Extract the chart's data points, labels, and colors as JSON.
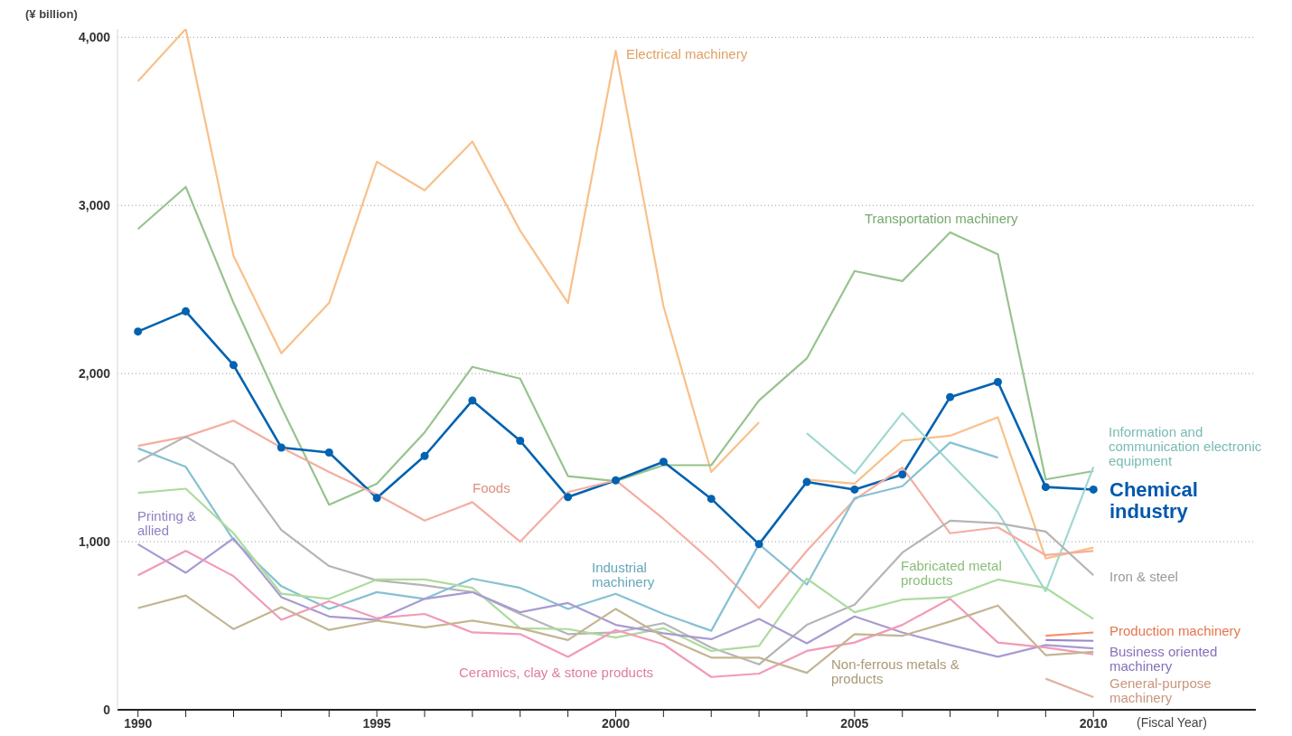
{
  "chart_data": {
    "type": "line",
    "ylabel": "(¥ billion)",
    "xlabel": "(Fiscal Year)",
    "x": [
      1990,
      1991,
      1992,
      1993,
      1994,
      1995,
      1996,
      1997,
      1998,
      1999,
      2000,
      2001,
      2002,
      2003,
      2004,
      2005,
      2006,
      2007,
      2008,
      2009,
      2010
    ],
    "xlim": [
      1989.57,
      2013.4
    ],
    "xticks": [
      1990,
      {
        "value": 1991,
        "label": null
      },
      {
        "value": 1992,
        "label": null
      },
      {
        "value": 1993,
        "label": null
      },
      {
        "value": 1994,
        "label": null
      },
      1995,
      {
        "value": 1996,
        "label": null
      },
      {
        "value": 1997,
        "label": null
      },
      {
        "value": 1998,
        "label": null
      },
      {
        "value": 1999,
        "label": null
      },
      2000,
      {
        "value": 2001,
        "label": null
      },
      {
        "value": 2002,
        "label": null
      },
      {
        "value": 2003,
        "label": null
      },
      {
        "value": 2004,
        "label": null
      },
      2005,
      {
        "value": 2006,
        "label": null
      },
      {
        "value": 2007,
        "label": null
      },
      {
        "value": 2008,
        "label": null
      },
      {
        "value": 2009,
        "label": null
      },
      2010
    ],
    "ylim": [
      0,
      4050
    ],
    "yticks": [
      {
        "value": 0,
        "label": "0"
      },
      {
        "value": 1000,
        "label": "1,000"
      },
      {
        "value": 2000,
        "label": "2,000"
      },
      {
        "value": 3000,
        "label": "3,000"
      },
      {
        "value": 4000,
        "label": "4,000"
      }
    ],
    "grid": "y",
    "legend": false,
    "marker": "none",
    "line_style": "solid",
    "series": [
      {
        "name": "Electrical machinery",
        "color": "#f9c089",
        "values": [
          3740,
          4050,
          2700,
          2120,
          2420,
          3260,
          3090,
          3380,
          2850,
          2420,
          3920,
          2400,
          1415,
          1710,
          null,
          null,
          null,
          null,
          null,
          null,
          null
        ]
      },
      {
        "color": "#f9c089",
        "values": [
          null,
          null,
          null,
          null,
          null,
          null,
          null,
          null,
          null,
          null,
          null,
          null,
          null,
          null,
          1370,
          1345,
          1600,
          1630,
          1740,
          900,
          965
        ]
      },
      {
        "name": "Transportation machinery",
        "color": "#97c38e",
        "values": [
          2860,
          3110,
          2420,
          1800,
          1220,
          1345,
          1650,
          2040,
          1970,
          1390,
          1360,
          1455,
          1455,
          1840,
          2090,
          2610,
          2550,
          2840,
          2710,
          1370,
          1420
        ]
      },
      {
        "name": "Chemical industry",
        "color": "#0062b0",
        "marker": "circle",
        "values": [
          2250,
          2370,
          2050,
          1560,
          1530,
          1260,
          1510,
          1840,
          1600,
          1265,
          1365,
          1475,
          1255,
          985,
          1355,
          1310,
          1400,
          1860,
          1950,
          1325,
          1310
        ]
      },
      {
        "name": "Information and communication electronic equipment",
        "color": "#9fd8d2",
        "values": [
          null,
          null,
          null,
          null,
          null,
          null,
          null,
          null,
          null,
          null,
          null,
          null,
          null,
          null,
          1645,
          1405,
          1765,
          1470,
          1175,
          705,
          1445
        ]
      },
      {
        "name": "Foods",
        "color": "#f4aea0",
        "values": [
          1570,
          1625,
          1720,
          1560,
          1415,
          1280,
          1125,
          1235,
          1000,
          1295,
          1365,
          1135,
          885,
          605,
          945,
          1250,
          1440,
          1050,
          1085,
          920,
          945
        ]
      },
      {
        "name": "Iron & steel",
        "color": "#b5b5b5",
        "values": [
          1475,
          1625,
          1460,
          1070,
          855,
          770,
          740,
          700,
          570,
          450,
          460,
          515,
          370,
          270,
          505,
          625,
          935,
          1125,
          1110,
          1060,
          800
        ]
      },
      {
        "name": "Industrial machinery",
        "color": "#86c1d3",
        "values": [
          1555,
          1445,
          1010,
          735,
          600,
          700,
          660,
          780,
          725,
          600,
          690,
          570,
          470,
          985,
          745,
          1260,
          1330,
          1590,
          1500,
          null,
          null
        ]
      },
      {
        "name": "Fabricated metal products",
        "color": "#addb9e",
        "values": [
          1290,
          1315,
          1050,
          690,
          660,
          775,
          775,
          725,
          485,
          480,
          430,
          485,
          350,
          380,
          780,
          580,
          655,
          670,
          775,
          725,
          540
        ]
      },
      {
        "name": "Printing & allied",
        "color": "#a99ad2",
        "values": [
          985,
          815,
          1020,
          670,
          555,
          535,
          660,
          700,
          580,
          635,
          505,
          455,
          420,
          540,
          395,
          555,
          460,
          385,
          315,
          385,
          365
        ]
      },
      {
        "name": "Ceramics, clay & stone products",
        "color": "#f29ab8",
        "values": [
          800,
          945,
          795,
          535,
          645,
          545,
          570,
          460,
          450,
          315,
          475,
          390,
          195,
          215,
          350,
          400,
          505,
          660,
          400,
          370,
          330
        ]
      },
      {
        "name": "Non-ferrous metals & products",
        "color": "#c4b593",
        "values": [
          605,
          680,
          480,
          610,
          475,
          530,
          490,
          530,
          485,
          415,
          600,
          435,
          310,
          310,
          220,
          450,
          440,
          525,
          620,
          325,
          345
        ]
      },
      {
        "name": "Production machinery",
        "color": "#f4906c",
        "values": [
          null,
          null,
          null,
          null,
          null,
          null,
          null,
          null,
          null,
          null,
          null,
          null,
          null,
          null,
          null,
          null,
          null,
          null,
          null,
          440,
          460
        ]
      },
      {
        "name": "Business oriented machinery",
        "color": "#9a87c9",
        "values": [
          null,
          null,
          null,
          null,
          null,
          null,
          null,
          null,
          null,
          null,
          null,
          null,
          null,
          null,
          null,
          null,
          null,
          null,
          null,
          415,
          410
        ]
      },
      {
        "name": "General-purpose machinery",
        "color": "#e0b49e",
        "values": [
          null,
          null,
          null,
          null,
          null,
          null,
          null,
          null,
          null,
          null,
          null,
          null,
          null,
          null,
          null,
          null,
          null,
          null,
          null,
          185,
          75
        ]
      }
    ]
  }
}
